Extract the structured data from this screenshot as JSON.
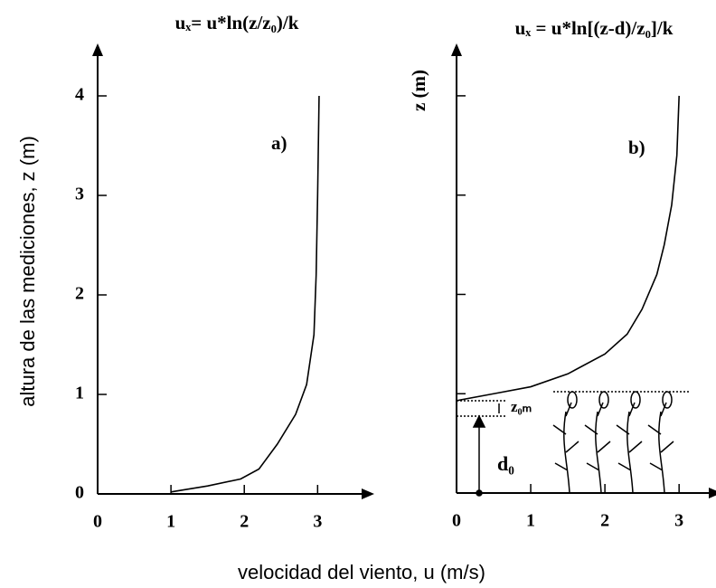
{
  "chart_data": [
    {
      "type": "line",
      "title": "uₓ= u*ln(z/z₀)/k",
      "panel_label": "a)",
      "ylabel": "altura de las mediciones, z (m)",
      "xlabel": "velocidad del viento, u (m/s)",
      "xlim": [
        0,
        3.6
      ],
      "ylim": [
        0,
        4.4
      ],
      "xticks": [
        0,
        1,
        2,
        3
      ],
      "yticks": [
        0,
        1,
        2,
        3,
        4
      ],
      "color": "#000000",
      "x": [
        1.0,
        1.5,
        1.95,
        2.2,
        2.45,
        2.7,
        2.85,
        2.95,
        2.98,
        3.0,
        3.02
      ],
      "values": [
        0.02,
        0.08,
        0.15,
        0.25,
        0.5,
        0.8,
        1.1,
        1.6,
        2.2,
        3.0,
        4.0
      ]
    },
    {
      "type": "line",
      "title": "uₓ = u*ln[(z-d)/z₀]/k",
      "panel_label": "b)",
      "ylabel": "z (m)",
      "xlim": [
        0,
        3.4
      ],
      "ylim": [
        0,
        4.4
      ],
      "xticks": [
        0,
        1,
        2,
        3
      ],
      "yticks": [
        1,
        2,
        3,
        4
      ],
      "color": "#000000",
      "x": [
        0,
        0.5,
        1,
        1.5,
        2,
        2.3,
        2.5,
        2.7,
        2.8,
        2.9,
        2.97,
        3.0
      ],
      "values": [
        0.93,
        1.0,
        1.07,
        1.2,
        1.4,
        1.6,
        1.85,
        2.2,
        2.5,
        2.9,
        3.4,
        4.0
      ],
      "annotations": [
        "z₀ₘ",
        "d₀"
      ]
    }
  ]
}
